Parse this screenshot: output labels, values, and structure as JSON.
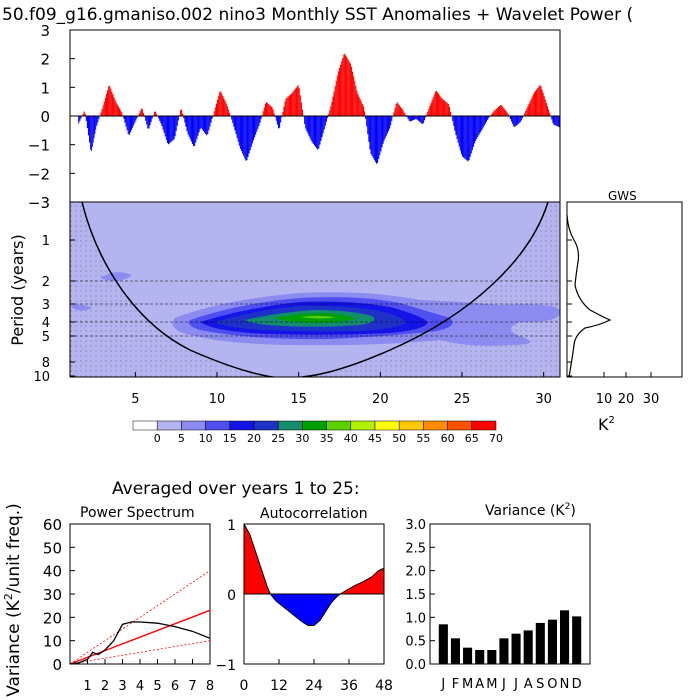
{
  "title": "50.f09_g16.gmaniso.002 nino3 Monthly SST Anomalies + Wavelet Power (",
  "chart_data": [
    {
      "type": "area",
      "name": "sst-anomaly",
      "ylim": [
        -3,
        3
      ],
      "xlim": [
        1,
        31
      ],
      "yticks": [
        "3",
        "2",
        "1",
        "0",
        "−1",
        "−2",
        "−3"
      ],
      "pos_color": "#ff0000",
      "neg_color": "#0000ff",
      "series": [
        {
          "x": 1.5,
          "y": -0.3
        },
        {
          "x": 1.9,
          "y": 0.2
        },
        {
          "x": 2.3,
          "y": -1.3
        },
        {
          "x": 2.6,
          "y": -0.4
        },
        {
          "x": 3.0,
          "y": 0.3
        },
        {
          "x": 3.4,
          "y": 1.1
        },
        {
          "x": 3.8,
          "y": 0.5
        },
        {
          "x": 4.2,
          "y": 0.1
        },
        {
          "x": 4.6,
          "y": -0.7
        },
        {
          "x": 5.0,
          "y": -0.2
        },
        {
          "x": 5.4,
          "y": 0.3
        },
        {
          "x": 5.8,
          "y": -0.5
        },
        {
          "x": 6.2,
          "y": 0.2
        },
        {
          "x": 6.6,
          "y": -0.3
        },
        {
          "x": 7.0,
          "y": -1.0
        },
        {
          "x": 7.4,
          "y": -0.8
        },
        {
          "x": 7.8,
          "y": 0.3
        },
        {
          "x": 8.2,
          "y": -0.6
        },
        {
          "x": 8.6,
          "y": -1.1
        },
        {
          "x": 9.0,
          "y": -0.4
        },
        {
          "x": 9.4,
          "y": -0.7
        },
        {
          "x": 9.8,
          "y": 0.1
        },
        {
          "x": 10.2,
          "y": 0.9
        },
        {
          "x": 10.6,
          "y": 0.4
        },
        {
          "x": 11.0,
          "y": -0.3
        },
        {
          "x": 11.4,
          "y": -1.1
        },
        {
          "x": 11.8,
          "y": -1.6
        },
        {
          "x": 12.2,
          "y": -0.9
        },
        {
          "x": 12.6,
          "y": -0.3
        },
        {
          "x": 13.0,
          "y": 0.5
        },
        {
          "x": 13.4,
          "y": 0.3
        },
        {
          "x": 13.8,
          "y": -0.5
        },
        {
          "x": 14.2,
          "y": 0.6
        },
        {
          "x": 14.6,
          "y": 0.8
        },
        {
          "x": 15.0,
          "y": 1.1
        },
        {
          "x": 15.4,
          "y": -0.4
        },
        {
          "x": 15.8,
          "y": -0.9
        },
        {
          "x": 16.2,
          "y": -1.2
        },
        {
          "x": 16.6,
          "y": -0.4
        },
        {
          "x": 17.0,
          "y": 0.4
        },
        {
          "x": 17.4,
          "y": 1.5
        },
        {
          "x": 17.8,
          "y": 2.2
        },
        {
          "x": 18.2,
          "y": 1.8
        },
        {
          "x": 18.6,
          "y": 0.8
        },
        {
          "x": 19.0,
          "y": 0.3
        },
        {
          "x": 19.4,
          "y": -1.3
        },
        {
          "x": 19.8,
          "y": -1.7
        },
        {
          "x": 20.2,
          "y": -0.9
        },
        {
          "x": 20.6,
          "y": -0.4
        },
        {
          "x": 21.0,
          "y": 0.5
        },
        {
          "x": 21.4,
          "y": 0.2
        },
        {
          "x": 21.8,
          "y": -0.2
        },
        {
          "x": 22.2,
          "y": -0.1
        },
        {
          "x": 22.6,
          "y": -0.3
        },
        {
          "x": 23.0,
          "y": 0.3
        },
        {
          "x": 23.4,
          "y": 0.9
        },
        {
          "x": 23.8,
          "y": 0.6
        },
        {
          "x": 24.2,
          "y": 0.4
        },
        {
          "x": 24.6,
          "y": -0.6
        },
        {
          "x": 25.0,
          "y": -1.4
        },
        {
          "x": 25.4,
          "y": -1.6
        },
        {
          "x": 25.8,
          "y": -0.9
        },
        {
          "x": 26.2,
          "y": -0.5
        },
        {
          "x": 26.6,
          "y": -0.1
        },
        {
          "x": 27.0,
          "y": 0.2
        },
        {
          "x": 27.4,
          "y": 0.4
        },
        {
          "x": 27.8,
          "y": 0.1
        },
        {
          "x": 28.2,
          "y": -0.4
        },
        {
          "x": 28.6,
          "y": -0.2
        },
        {
          "x": 29.0,
          "y": 0.3
        },
        {
          "x": 29.4,
          "y": 0.8
        },
        {
          "x": 29.8,
          "y": 1.1
        },
        {
          "x": 30.2,
          "y": 0.4
        },
        {
          "x": 30.6,
          "y": -0.3
        },
        {
          "x": 31.0,
          "y": -0.4
        }
      ]
    },
    {
      "type": "heatmap",
      "name": "wavelet-power",
      "ylabel": "Period (years)",
      "yticks": [
        "1",
        "2",
        "3",
        "4",
        "5",
        "8",
        "10"
      ],
      "xticks": [
        "5",
        "10",
        "15",
        "20",
        "25",
        "30"
      ],
      "xlim": [
        1,
        31
      ],
      "dashed_periods": [
        2,
        3,
        4,
        5
      ]
    },
    {
      "type": "line",
      "name": "global-wavelet-spectrum",
      "title": "GWS",
      "xticks": [
        "10",
        "20",
        "30"
      ],
      "xunit": "K",
      "xunit_sup": "2",
      "peak_period": 4,
      "peak_power": 15
    },
    {
      "type": "heatmap",
      "name": "colorbar",
      "labels": [
        "0",
        "5",
        "10",
        "15",
        "20",
        "25",
        "30",
        "35",
        "40",
        "45",
        "50",
        "55",
        "60",
        "65",
        "70"
      ],
      "colors": [
        "#ffffff",
        "#b4b4f0",
        "#8c8cf0",
        "#5050f0",
        "#1414e6",
        "#1e32c8",
        "#148c6e",
        "#00a000",
        "#5ad200",
        "#b4f000",
        "#ffff00",
        "#ffc800",
        "#ff8c00",
        "#ff5000",
        "#ff0000"
      ]
    },
    {
      "type": "line",
      "name": "power-spectrum",
      "title": "Power Spectrum",
      "ylabel": "Variance (K",
      "ylabel_sup": "2",
      "ylabel_tail": "/unit freq.)",
      "xticks": [
        "1",
        "2",
        "3",
        "4",
        "5",
        "6",
        "7",
        "8"
      ],
      "yticks": [
        "60",
        "50",
        "40",
        "30",
        "20",
        "10",
        "0"
      ],
      "ylim": [
        0,
        60
      ],
      "xlim": [
        0,
        8
      ],
      "spectrum": [
        [
          0,
          0
        ],
        [
          0.5,
          0.5
        ],
        [
          1,
          2
        ],
        [
          1.3,
          5
        ],
        [
          1.6,
          4
        ],
        [
          2,
          6
        ],
        [
          2.5,
          10
        ],
        [
          3,
          17
        ],
        [
          3.5,
          18
        ],
        [
          4,
          18
        ],
        [
          5,
          17.5
        ],
        [
          6,
          16
        ],
        [
          7,
          14
        ],
        [
          8,
          11
        ]
      ],
      "red_noise": [
        [
          0,
          0
        ],
        [
          8,
          23
        ]
      ],
      "upper_bound": [
        [
          0,
          0
        ],
        [
          8,
          40
        ]
      ],
      "lower_bound": [
        [
          0,
          0
        ],
        [
          8,
          10
        ]
      ]
    },
    {
      "type": "area",
      "name": "autocorrelation",
      "title": "Autocorrelation",
      "xticks": [
        "0",
        "12",
        "24",
        "36",
        "48"
      ],
      "yticks": [
        "1",
        "0",
        "−1"
      ],
      "ylim": [
        -1,
        1
      ],
      "xlim": [
        0,
        48
      ],
      "values": [
        [
          0,
          1.0
        ],
        [
          2,
          0.85
        ],
        [
          4,
          0.6
        ],
        [
          6,
          0.35
        ],
        [
          8,
          0.1
        ],
        [
          9,
          0.0
        ],
        [
          11,
          -0.1
        ],
        [
          14,
          -0.2
        ],
        [
          17,
          -0.3
        ],
        [
          20,
          -0.4
        ],
        [
          22,
          -0.45
        ],
        [
          24,
          -0.45
        ],
        [
          26,
          -0.38
        ],
        [
          28,
          -0.25
        ],
        [
          30,
          -0.12
        ],
        [
          32,
          -0.03
        ],
        [
          33,
          0.0
        ],
        [
          35,
          0.05
        ],
        [
          38,
          0.12
        ],
        [
          41,
          0.18
        ],
        [
          44,
          0.25
        ],
        [
          46,
          0.33
        ],
        [
          48,
          0.37
        ]
      ]
    },
    {
      "type": "bar",
      "name": "monthly-variance",
      "title": "Variance (K",
      "title_sup": "2",
      "title_tail": ")",
      "categories": [
        "J",
        "F",
        "M",
        "A",
        "M",
        "J",
        "J",
        "A",
        "S",
        "O",
        "N",
        "D"
      ],
      "values": [
        0.85,
        0.55,
        0.35,
        0.3,
        0.3,
        0.55,
        0.65,
        0.72,
        0.88,
        0.95,
        1.15,
        1.02
      ],
      "yticks": [
        "3.0",
        "2.5",
        "2.0",
        "1.5",
        "1.0",
        "0.5",
        "0.0"
      ],
      "ylim": [
        0,
        3
      ]
    }
  ],
  "averaged_caption": "Averaged over years 1 to 25:"
}
